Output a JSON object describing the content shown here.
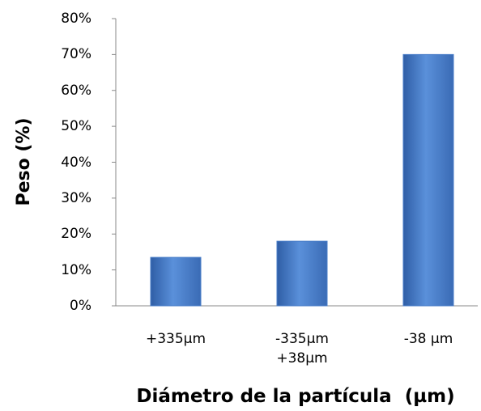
{
  "chart_data": {
    "type": "bar",
    "categories": [
      "+335µm",
      "-335µm\n+38µm",
      "-38 µm"
    ],
    "values": [
      13.5,
      18,
      70
    ],
    "color": "#4a7ec8",
    "ylim": [
      0,
      80
    ],
    "yticks": [
      {
        "value": 0,
        "label": "0%"
      },
      {
        "value": 10,
        "label": "10%"
      },
      {
        "value": 20,
        "label": "20%"
      },
      {
        "value": 30,
        "label": "30%"
      },
      {
        "value": 40,
        "label": "40%"
      },
      {
        "value": 50,
        "label": "50%"
      },
      {
        "value": 60,
        "label": "60%"
      },
      {
        "value": 70,
        "label": "70%"
      },
      {
        "value": 80,
        "label": "80%"
      }
    ],
    "ylabel": "Peso (%)",
    "xlabel": "Diámetro de la partícula  (µm)",
    "grid": false
  }
}
